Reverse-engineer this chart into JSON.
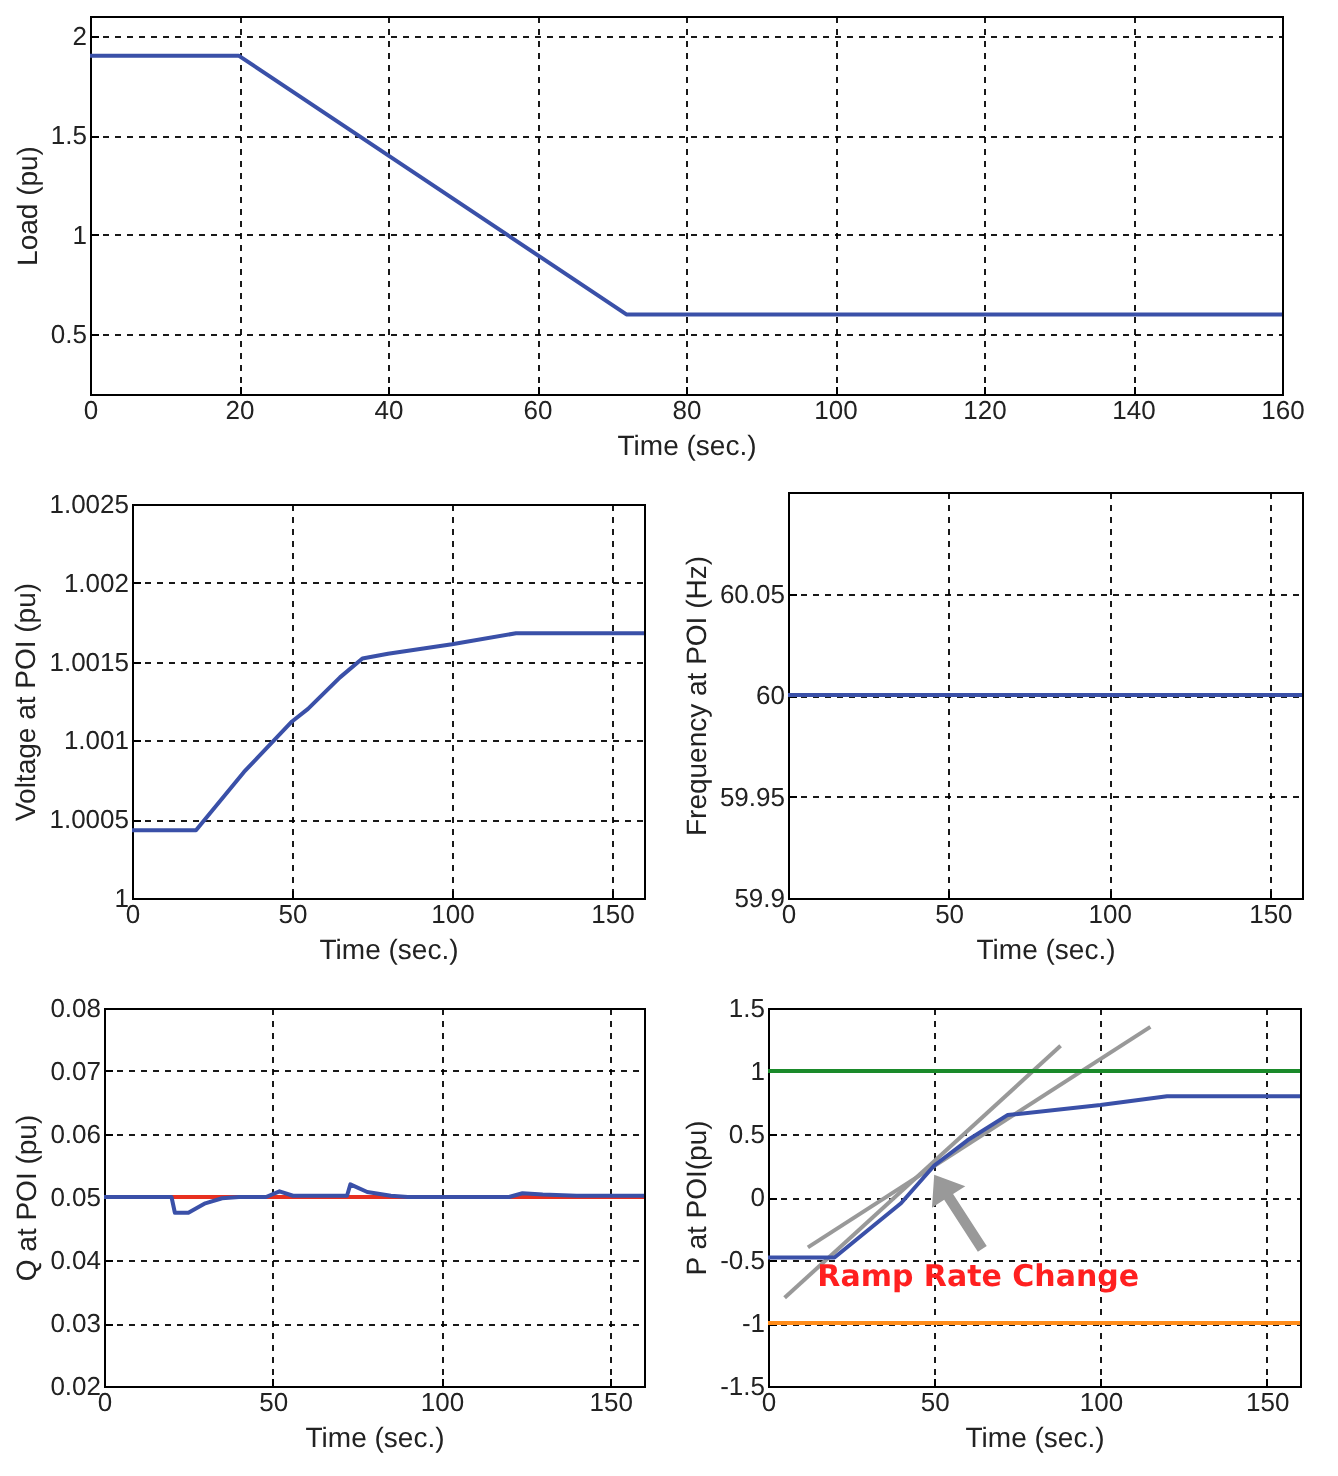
{
  "chart_data": [
    {
      "type": "line",
      "xlabel": "Time (sec.)",
      "ylabel": "Load (pu)",
      "xlim": [
        0,
        160
      ],
      "xticks": [
        0,
        20,
        40,
        60,
        80,
        100,
        120,
        140,
        160
      ],
      "ylim": [
        0.2,
        2.1
      ],
      "yticks": [
        0.5,
        1,
        1.5,
        2
      ],
      "grid": true,
      "series": [
        {
          "color": "#3a50a8",
          "x": [
            0,
            20,
            72,
            160
          ],
          "values": [
            1.9,
            1.9,
            0.6,
            0.6
          ]
        }
      ]
    },
    {
      "type": "line",
      "xlabel": "Time (sec.)",
      "ylabel": "Voltage at POI (pu)",
      "xlim": [
        0,
        160
      ],
      "xticks": [
        0,
        50,
        100,
        150
      ],
      "ylim": [
        1,
        1.0025
      ],
      "yticks": [
        1,
        1.0005,
        1.001,
        1.0015,
        1.002,
        1.0025
      ],
      "grid": true,
      "series": [
        {
          "color": "#3a50a8",
          "x": [
            0,
            20,
            35,
            50,
            55,
            65,
            72,
            80,
            100,
            120,
            160
          ],
          "values": [
            1.00043,
            1.00043,
            1.0008,
            1.00112,
            1.0012,
            1.0014,
            1.00152,
            1.00155,
            1.00161,
            1.00168,
            1.00168
          ]
        }
      ]
    },
    {
      "type": "line",
      "xlabel": "Time (sec.)",
      "ylabel": "Frequency at POI (Hz)",
      "xlim": [
        0,
        160
      ],
      "xticks": [
        0,
        50,
        100,
        150
      ],
      "ylim": [
        59.9,
        60.1
      ],
      "yticks": [
        59.9,
        59.95,
        60,
        60.05
      ],
      "grid": true,
      "series": [
        {
          "color": "#3a50a8",
          "x": [
            0,
            160
          ],
          "values": [
            60,
            60
          ]
        }
      ]
    },
    {
      "type": "line",
      "xlabel": "Time (sec.)",
      "ylabel": "Q at POI (pu)",
      "xlim": [
        0,
        160
      ],
      "xticks": [
        0,
        50,
        100,
        150
      ],
      "ylim": [
        0.02,
        0.08
      ],
      "yticks": [
        0.02,
        0.03,
        0.04,
        0.05,
        0.06,
        0.07,
        0.08
      ],
      "grid": true,
      "series": [
        {
          "color": "#e83020",
          "x": [
            0,
            160
          ],
          "values": [
            0.05,
            0.05
          ]
        },
        {
          "color": "#3a50a8",
          "x": [
            0,
            20,
            21,
            25,
            30,
            35,
            40,
            48,
            52,
            56,
            72,
            73,
            78,
            85,
            90,
            120,
            124,
            130,
            140,
            160
          ],
          "values": [
            0.05,
            0.05,
            0.0475,
            0.0475,
            0.049,
            0.0498,
            0.05,
            0.05,
            0.0509,
            0.0502,
            0.0502,
            0.052,
            0.0508,
            0.0502,
            0.05,
            0.05,
            0.0506,
            0.0504,
            0.0502,
            0.0502
          ]
        }
      ]
    },
    {
      "type": "line",
      "xlabel": "Time (sec.)",
      "ylabel": "P at POI(pu)",
      "xlim": [
        0,
        160
      ],
      "xticks": [
        0,
        50,
        100,
        150
      ],
      "ylim": [
        -1.5,
        1.5
      ],
      "yticks": [
        -1.5,
        -1,
        -0.5,
        0,
        0.5,
        1,
        1.5
      ],
      "grid": true,
      "ref_lines": [
        {
          "axis": "y",
          "value": 1,
          "color": "#1a8a2a"
        },
        {
          "axis": "y",
          "value": -1,
          "color": "#ff8c1a"
        }
      ],
      "annotations": [
        {
          "text": "Ramp Rate Change",
          "x": 50,
          "y": 0.2
        }
      ],
      "series": [
        {
          "color": "#999999",
          "x": [
            5,
            88
          ],
          "values": [
            -0.8,
            1.2
          ]
        },
        {
          "color": "#999999",
          "x": [
            12,
            115
          ],
          "values": [
            -0.4,
            1.35
          ]
        },
        {
          "color": "#3a50a8",
          "x": [
            0,
            20,
            40,
            50,
            60,
            72,
            100,
            120,
            160
          ],
          "values": [
            -0.48,
            -0.48,
            -0.05,
            0.25,
            0.45,
            0.65,
            0.73,
            0.8,
            0.8
          ]
        }
      ]
    }
  ]
}
